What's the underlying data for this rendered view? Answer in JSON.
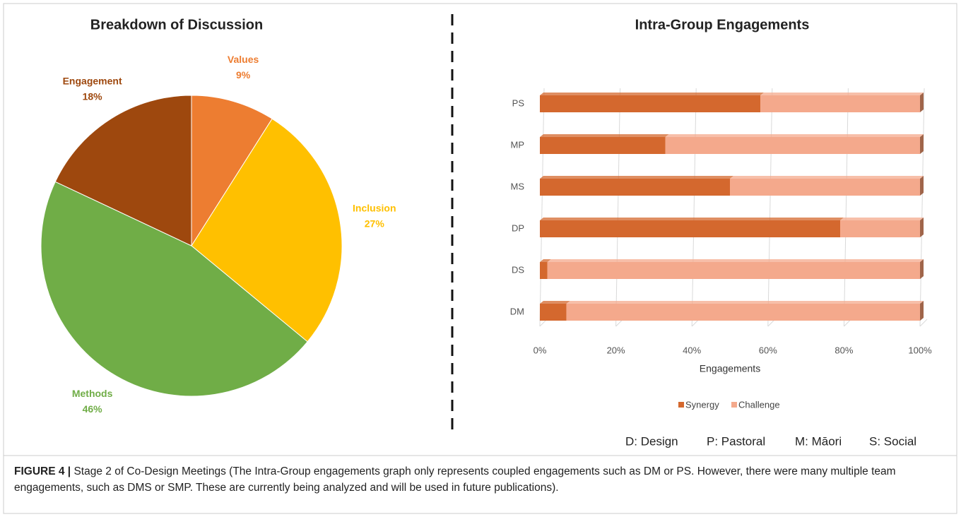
{
  "chart_data": [
    {
      "type": "pie",
      "title": "Breakdown of Discussion",
      "categories": [
        "Values",
        "Inclusion",
        "Methods",
        "Engagement"
      ],
      "values": [
        9,
        27,
        46,
        18
      ],
      "value_labels": [
        "9%",
        "27%",
        "46%",
        "18%"
      ],
      "colors": [
        "#ed7d31",
        "#ffc000",
        "#70ad47",
        "#9e480e"
      ]
    },
    {
      "type": "bar",
      "orientation": "horizontal",
      "stacked": true,
      "title": "Intra-Group Engagements",
      "categories": [
        "PS",
        "MP",
        "MS",
        "DP",
        "DS",
        "DM"
      ],
      "series": [
        {
          "name": "Synergy",
          "color": "#d4682e",
          "values": [
            58,
            33,
            50,
            79,
            2,
            7
          ]
        },
        {
          "name": "Challenge",
          "color": "#f4a98c",
          "values": [
            42,
            67,
            50,
            21,
            98,
            93
          ]
        }
      ],
      "xlim": [
        0,
        100
      ],
      "xticks": [
        {
          "value": 0,
          "label": "0%"
        },
        {
          "value": 20,
          "label": "20%"
        },
        {
          "value": 40,
          "label": "40%"
        },
        {
          "value": 60,
          "label": "60%"
        },
        {
          "value": 80,
          "label": "80%"
        },
        {
          "value": 100,
          "label": "100%"
        }
      ],
      "xlabel": "Engagements",
      "grid": true,
      "legend": "bottom"
    }
  ],
  "key": [
    "D: Design",
    "P: Pastoral",
    "M: Māori",
    "S: Social"
  ],
  "caption": {
    "label": "FIGURE 4 |",
    "text": "Stage 2 of Co-Design Meetings (The Intra-Group engagements graph only represents coupled engagements such as DM or PS. However, there were many multiple team engagements, such as DMS or SMP. These are currently being analyzed and will be used in future publications)."
  }
}
